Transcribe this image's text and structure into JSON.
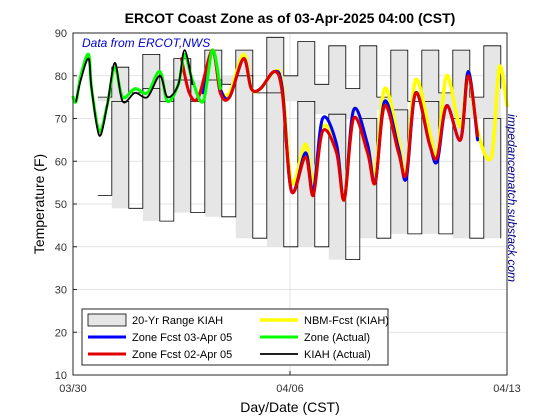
{
  "chart_data": {
    "type": "line",
    "title": "ERCOT Coast Zone as of 03-Apr-2025 04:00 (CST)",
    "xlabel": "Day/Date (CST)",
    "ylabel": "Temperature (F)",
    "source_note": "Data from ERCOT,NWS",
    "side_note": "impedancematch.substack.com",
    "xlim": [
      0,
      14
    ],
    "ylim": [
      10,
      90
    ],
    "xticks": [
      {
        "x": 0,
        "label": "03/30"
      },
      {
        "x": 7,
        "label": "04/06"
      },
      {
        "x": 14,
        "label": "04/13"
      }
    ],
    "yticks": [
      10,
      20,
      30,
      40,
      50,
      60,
      70,
      80,
      90
    ],
    "grid": true,
    "legend_position": "bottom-left",
    "colors": {
      "range_fill": "#e6e6e6",
      "range_edge": "#000000",
      "zone_fcst_0403": "#0000ff",
      "zone_fcst_0402": "#e00000",
      "nbm_fcst": "#ffff00",
      "zone_actual": "#00ff00",
      "kiah_actual": "#000000"
    },
    "series": [
      {
        "name": "20-Yr Range KIAH",
        "kind": "band",
        "x": [
          0.8,
          1.25,
          1.8,
          2.25,
          2.8,
          3.25,
          3.8,
          4.25,
          4.8,
          5.25,
          5.8,
          6.25,
          6.8,
          7.25,
          7.8,
          8.25,
          8.8,
          9.25,
          9.8,
          10.25,
          10.8,
          11.25,
          11.8,
          12.25,
          12.8,
          13.25,
          13.8
        ],
        "low": [
          52,
          74,
          49,
          77,
          46,
          79,
          48,
          79,
          47,
          80,
          42,
          76,
          40,
          74,
          40,
          71,
          37,
          70,
          42,
          72,
          43,
          74,
          43,
          70,
          42,
          70,
          42
        ],
        "high": [
          75,
          82,
          76,
          85,
          74,
          84,
          74,
          86,
          78,
          86,
          76,
          89,
          80,
          88,
          78,
          87,
          77,
          87,
          75,
          86,
          74,
          86,
          76,
          86,
          75,
          87,
          77
        ]
      },
      {
        "name": "Zone Fcst 03-Apr 05",
        "x": [
          4.2,
          4.5,
          4.75,
          5.05,
          5.5,
          5.75,
          6.05,
          6.5,
          6.75,
          7.05,
          7.5,
          7.75,
          8.05,
          8.5,
          8.75,
          9.05,
          9.5,
          9.75,
          10.05,
          10.5,
          10.75,
          11.05,
          11.5,
          11.75,
          12.05,
          12.5,
          12.75,
          13.05
        ],
        "y": [
          76,
          86,
          77,
          75,
          84,
          77,
          77,
          81,
          77,
          53,
          62,
          53,
          70,
          64,
          51,
          72,
          64,
          55,
          74,
          63,
          56,
          76,
          64,
          60,
          73,
          65,
          81,
          65
        ]
      },
      {
        "name": "Zone Fcst 02-Apr 05",
        "x": [
          3.5,
          3.75,
          4.05,
          4.5,
          4.75,
          5.05,
          5.5,
          5.75,
          6.05,
          6.5,
          6.75,
          7.05,
          7.5,
          7.75,
          8.05,
          8.5,
          8.75,
          9.05,
          9.5,
          9.75,
          10.05,
          10.5,
          10.75,
          11.05,
          11.5,
          11.75,
          12.05,
          12.5,
          12.75,
          13.05
        ],
        "y": [
          84,
          76,
          75,
          86,
          76,
          75,
          84,
          77,
          77,
          81,
          76,
          53,
          61,
          52,
          67,
          62,
          51,
          70,
          62,
          55,
          73,
          62,
          57,
          76,
          64,
          61,
          73,
          65,
          80,
          66
        ]
      },
      {
        "name": "NBM-Fcst (KIAH)",
        "x": [
          4.2,
          4.5,
          4.75,
          5.05,
          5.5,
          5.75,
          6.05,
          6.5,
          6.75,
          7.05,
          7.5,
          7.75,
          8.05,
          8.5,
          8.75,
          9.05,
          9.5,
          9.75,
          10.05,
          10.5,
          10.75,
          11.05,
          11.5,
          11.75,
          12.05,
          12.5,
          12.75,
          13.05,
          13.5,
          13.75,
          14.0
        ],
        "y": [
          76,
          86,
          77,
          76,
          85,
          77,
          77,
          81,
          78,
          55,
          64,
          55,
          68,
          64,
          51,
          72,
          64,
          57,
          77,
          65,
          57,
          79,
          67,
          61,
          80,
          68,
          81,
          67,
          61,
          82,
          73
        ]
      },
      {
        "name": "Zone (Actual)",
        "x": [
          0.0,
          0.1,
          0.25,
          0.5,
          0.6,
          0.85,
          1.1,
          1.35,
          1.6,
          2.0,
          2.4,
          2.8,
          3.05,
          3.4,
          3.6,
          3.85,
          4.2,
          4.5,
          4.75
        ],
        "y": [
          75,
          74,
          80,
          85,
          77,
          67,
          73,
          82,
          75,
          77,
          76,
          81,
          74,
          78,
          85,
          79,
          74,
          86,
          77
        ]
      },
      {
        "name": "KIAH (Actual)",
        "x": [
          0.1,
          0.25,
          0.5,
          0.6,
          0.85,
          1.1,
          1.35,
          1.6,
          2.0,
          2.4,
          2.8,
          3.05,
          3.4,
          3.6,
          3.85
        ],
        "y": [
          74,
          79,
          84,
          77,
          66,
          73,
          83,
          74,
          76,
          75,
          80,
          75,
          78,
          86,
          78
        ]
      }
    ],
    "legend": [
      "20-Yr Range KIAH",
      "Zone Fcst 03-Apr 05",
      "Zone Fcst 02-Apr 05",
      "NBM-Fcst (KIAH)",
      "Zone (Actual)",
      "KIAH (Actual)"
    ]
  }
}
